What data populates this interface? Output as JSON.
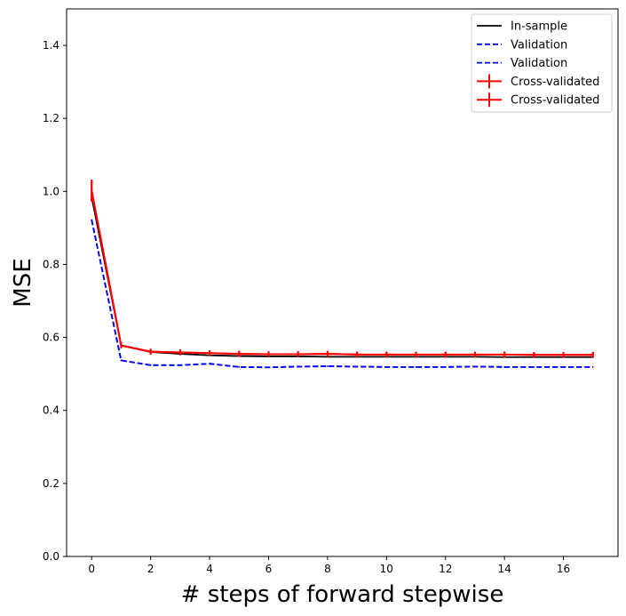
{
  "chart_data": {
    "type": "line",
    "xlabel": "# steps of forward stepwise",
    "ylabel": "MSE",
    "xlim": [
      -0.85,
      17.85
    ],
    "ylim": [
      0,
      1.5
    ],
    "xticks": [
      0,
      2,
      4,
      6,
      8,
      10,
      12,
      14,
      16
    ],
    "yticks": [
      0.0,
      0.2,
      0.4,
      0.6,
      0.8,
      1.0,
      1.2,
      1.4
    ],
    "grid": false,
    "legend_position": "top-right",
    "x": [
      0,
      1,
      2,
      3,
      4,
      5,
      6,
      7,
      8,
      9,
      10,
      11,
      12,
      13,
      14,
      15,
      16,
      17
    ],
    "series": [
      {
        "name": "In-sample",
        "style": "solid",
        "color": "#000000",
        "values": [
          0.985,
          0.578,
          0.56,
          0.555,
          0.551,
          0.549,
          0.548,
          0.548,
          0.547,
          0.547,
          0.547,
          0.547,
          0.547,
          0.547,
          0.546,
          0.546,
          0.546,
          0.546
        ]
      },
      {
        "name": "Validation",
        "style": "dashed",
        "color": "#0000ff",
        "values": [
          0.922,
          0.537,
          0.524,
          0.524,
          0.528,
          0.519,
          0.518,
          0.52,
          0.521,
          0.52,
          0.519,
          0.519,
          0.519,
          0.52,
          0.519,
          0.519,
          0.519,
          0.519
        ]
      },
      {
        "name": "Validation",
        "style": "dashed",
        "color": "#0000ff",
        "values": [
          0.922,
          0.537,
          0.524,
          0.524,
          0.528,
          0.519,
          0.518,
          0.52,
          0.521,
          0.52,
          0.519,
          0.519,
          0.519,
          0.52,
          0.519,
          0.519,
          0.519,
          0.519
        ]
      },
      {
        "name": "Cross-validated",
        "style": "errorbar",
        "color": "#ff0000",
        "values": [
          1.002,
          0.578,
          0.561,
          0.559,
          0.557,
          0.555,
          0.554,
          0.554,
          0.555,
          0.553,
          0.553,
          0.553,
          0.553,
          0.553,
          0.553,
          0.552,
          0.552,
          0.552
        ],
        "errors": [
          0.03,
          0.008,
          0.008,
          0.008,
          0.008,
          0.008,
          0.008,
          0.008,
          0.008,
          0.008,
          0.008,
          0.008,
          0.008,
          0.008,
          0.008,
          0.008,
          0.008,
          0.008
        ]
      },
      {
        "name": "Cross-validated",
        "style": "errorbar",
        "color": "#ff0000",
        "values": [
          1.002,
          0.578,
          0.561,
          0.559,
          0.557,
          0.555,
          0.554,
          0.554,
          0.555,
          0.553,
          0.553,
          0.553,
          0.553,
          0.553,
          0.553,
          0.552,
          0.552,
          0.552
        ],
        "errors": [
          0.03,
          0.008,
          0.008,
          0.008,
          0.008,
          0.008,
          0.008,
          0.008,
          0.008,
          0.008,
          0.008,
          0.008,
          0.008,
          0.008,
          0.008,
          0.008,
          0.008,
          0.008
        ]
      }
    ]
  }
}
